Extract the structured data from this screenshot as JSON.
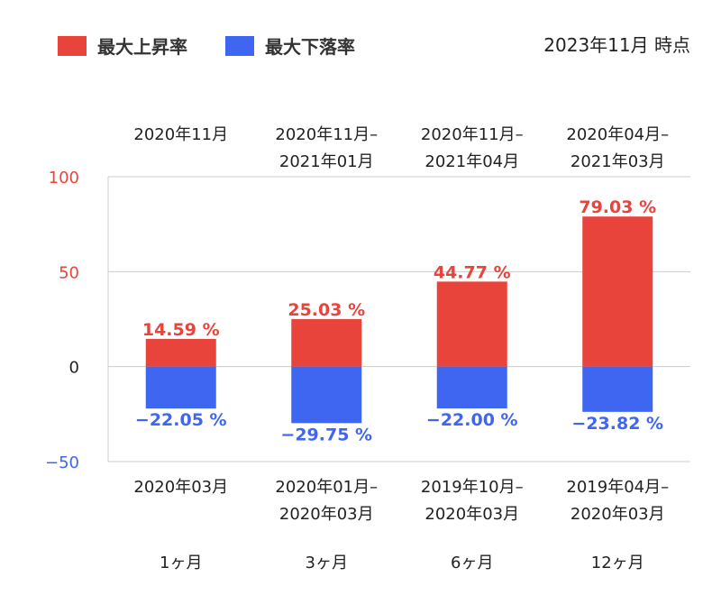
{
  "legend": {
    "rise_label": "最大上昇率",
    "fall_label": "最大下落率"
  },
  "as_of": "2023年11月 時点",
  "colors": {
    "rise": "#e8443b",
    "fall": "#3e66f0",
    "grid": "#cccccc",
    "axis_pos": "#e8443b",
    "axis_neg": "#3e66f0"
  },
  "chart_data": {
    "type": "bar",
    "stacked": true,
    "categories": [
      "1ヶ月",
      "3ヶ月",
      "6ヶ月",
      "12ヶ月"
    ],
    "series": [
      {
        "name": "最大上昇率",
        "values": [
          14.59,
          25.03,
          44.77,
          79.03
        ],
        "labels": [
          "14.59 %",
          "25.03 %",
          "44.77 %",
          "79.03 %"
        ]
      },
      {
        "name": "最大下落率",
        "values": [
          -22.05,
          -29.75,
          -22.0,
          -23.82
        ],
        "labels": [
          "−22.05 %",
          "−29.75 %",
          "−22.00 %",
          "−23.82 %"
        ]
      }
    ],
    "rise_periods": [
      [
        "2020年11月"
      ],
      [
        "2020年11月–",
        "2021年01月"
      ],
      [
        "2020年11月–",
        "2021年04月"
      ],
      [
        "2020年04月–",
        "2021年03月"
      ]
    ],
    "fall_periods": [
      [
        "2020年03月"
      ],
      [
        "2020年01月–",
        "2020年03月"
      ],
      [
        "2019年10月–",
        "2020年03月"
      ],
      [
        "2019年04月–",
        "2020年03月"
      ]
    ],
    "yticks": [
      100,
      50,
      0,
      -50
    ],
    "ytick_labels": [
      "100",
      "50",
      "0",
      "−50"
    ],
    "ylim": [
      -50,
      100
    ],
    "grid": true,
    "legend_position": "top-left"
  }
}
